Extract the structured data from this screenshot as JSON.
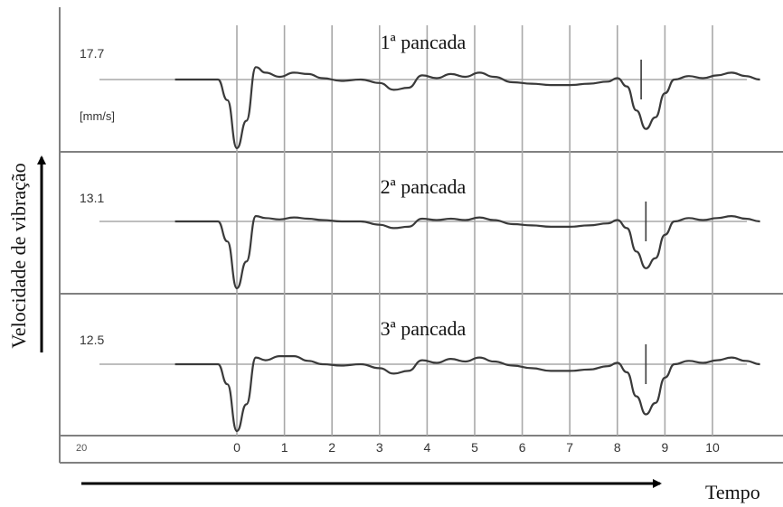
{
  "chart_data": {
    "type": "line",
    "ylabel": "Velocidade de vibração",
    "xlabel": "Tempo",
    "x_ticks": [
      "0",
      "1",
      "2",
      "3",
      "4",
      "5",
      "6",
      "7",
      "8",
      "9",
      "10"
    ],
    "corner_label": "20",
    "unit_label": "[mm/s]",
    "grid": true,
    "panels": [
      {
        "name": "1ª pancada",
        "scale": "17.7",
        "marker_x": 8.5,
        "x": [
          -1.3,
          -0.4,
          -0.2,
          0,
          0.2,
          0.4,
          0.6,
          0.9,
          1.2,
          1.5,
          1.8,
          2.2,
          2.6,
          3.0,
          3.3,
          3.6,
          3.9,
          4.2,
          4.5,
          4.8,
          5.1,
          5.4,
          5.8,
          6.2,
          6.6,
          7.0,
          7.4,
          7.8,
          8.0,
          8.2,
          8.4,
          8.6,
          8.8,
          9.0,
          9.2,
          9.5,
          9.8,
          10.1,
          10.4,
          10.7,
          11.0
        ],
        "y": [
          0,
          0,
          -0.3,
          -1.0,
          -0.6,
          0.18,
          0.1,
          0.04,
          0.1,
          0.08,
          0.02,
          -0.02,
          0.0,
          -0.05,
          -0.15,
          -0.12,
          0.06,
          0.02,
          0.08,
          0.04,
          0.1,
          0.04,
          -0.04,
          -0.06,
          -0.08,
          -0.08,
          -0.06,
          -0.03,
          0.02,
          -0.1,
          -0.45,
          -0.72,
          -0.55,
          -0.2,
          0.0,
          0.05,
          0.02,
          0.06,
          0.1,
          0.05,
          0.0
        ]
      },
      {
        "name": "2ª pancada",
        "scale": "13.1",
        "marker_x": 8.6,
        "x": [
          -1.3,
          -0.4,
          -0.2,
          0,
          0.2,
          0.4,
          0.6,
          0.9,
          1.2,
          1.5,
          1.8,
          2.2,
          2.6,
          3.0,
          3.3,
          3.6,
          3.9,
          4.2,
          4.5,
          4.8,
          5.1,
          5.4,
          5.8,
          6.2,
          6.6,
          7.0,
          7.4,
          7.8,
          8.0,
          8.2,
          8.4,
          8.6,
          8.8,
          9.0,
          9.2,
          9.5,
          9.8,
          10.1,
          10.4,
          10.7,
          11.0
        ],
        "y": [
          0,
          0,
          -0.3,
          -1.0,
          -0.6,
          0.08,
          0.05,
          0.03,
          0.06,
          0.04,
          0.02,
          0.0,
          0.0,
          -0.05,
          -0.1,
          -0.08,
          0.04,
          0.02,
          0.04,
          0.02,
          0.06,
          0.02,
          -0.04,
          -0.06,
          -0.08,
          -0.08,
          -0.06,
          -0.03,
          0.02,
          -0.1,
          -0.45,
          -0.7,
          -0.55,
          -0.2,
          0.0,
          0.05,
          0.02,
          0.05,
          0.08,
          0.04,
          0.0
        ]
      },
      {
        "name": "3ª pancada",
        "scale": "12.5",
        "marker_x": 8.6,
        "x": [
          -1.3,
          -0.4,
          -0.2,
          0,
          0.2,
          0.4,
          0.6,
          0.9,
          1.2,
          1.5,
          1.8,
          2.2,
          2.6,
          3.0,
          3.3,
          3.6,
          3.9,
          4.2,
          4.5,
          4.8,
          5.1,
          5.4,
          5.8,
          6.2,
          6.6,
          7.0,
          7.4,
          7.8,
          8.0,
          8.2,
          8.4,
          8.6,
          8.8,
          9.0,
          9.2,
          9.5,
          9.8,
          10.1,
          10.4,
          10.7,
          11.0
        ],
        "y": [
          0,
          0,
          -0.3,
          -1.0,
          -0.6,
          0.1,
          0.06,
          0.12,
          0.12,
          0.05,
          0.0,
          -0.02,
          0.0,
          -0.06,
          -0.14,
          -0.1,
          0.06,
          0.02,
          0.08,
          0.04,
          0.1,
          0.04,
          -0.02,
          -0.06,
          -0.1,
          -0.1,
          -0.08,
          -0.03,
          0.02,
          -0.12,
          -0.48,
          -0.75,
          -0.58,
          -0.2,
          0.0,
          0.05,
          0.02,
          0.06,
          0.1,
          0.05,
          0.0
        ]
      }
    ]
  },
  "colors": {
    "frame": "#808080",
    "grid": "#a8a8a8",
    "signal": "#3a3a3a",
    "text": "#111111",
    "arrow": "#000000"
  }
}
